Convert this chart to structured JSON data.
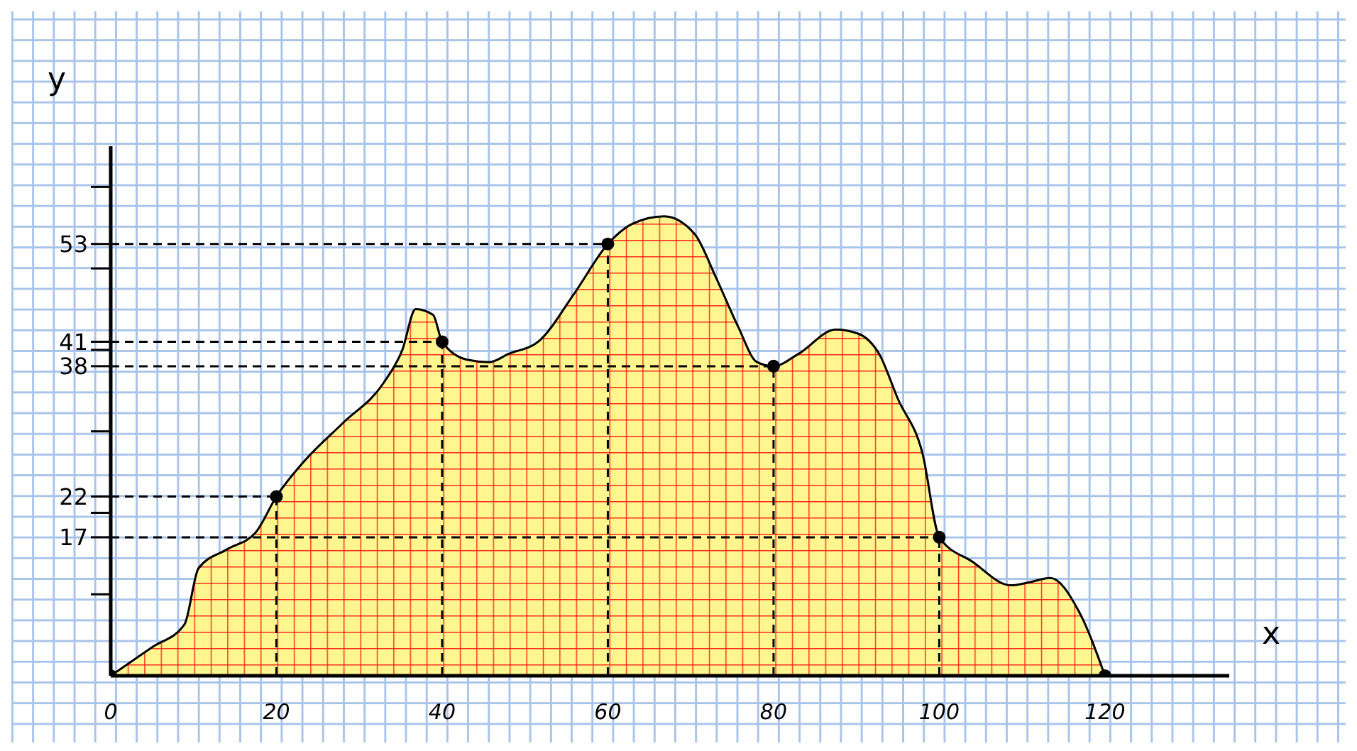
{
  "chart_data": {
    "type": "area",
    "xlabel": "x",
    "ylabel": "y",
    "xlim": [
      0,
      135
    ],
    "ylim": [
      0,
      65
    ],
    "xticks": [
      0,
      20,
      40,
      60,
      80,
      100,
      120
    ],
    "yticks": [
      {
        "value": 10,
        "label": null
      },
      {
        "value": 20,
        "label": null
      },
      {
        "value": 30,
        "label": null
      },
      {
        "value": 40,
        "label": null
      },
      {
        "value": 50,
        "label": null
      },
      {
        "value": 60,
        "label": null
      },
      17,
      22,
      38,
      41,
      53
    ],
    "grid": false,
    "legend": false,
    "series": [
      {
        "color": "#fff68f",
        "x": [
          0,
          5,
          8.9,
          10.6,
          14,
          17.5,
          20,
          23.5,
          28,
          32.9,
          35.2,
          36.8,
          38.9,
          40,
          43,
          45.7,
          48,
          51.7,
          56,
          60,
          63,
          66.8,
          70.5,
          73,
          75.7,
          78,
          80,
          83,
          87.5,
          90.2,
          92.8,
          95,
          98,
          100,
          104,
          108.6,
          111,
          113.4,
          116.8,
          120
        ],
        "values": [
          0,
          3.5,
          6.3,
          13.2,
          15.5,
          17.6,
          22,
          26.5,
          31,
          35.9,
          40,
          45,
          44.3,
          41,
          38.8,
          38.5,
          39.5,
          41.1,
          47,
          53,
          55.5,
          56.4,
          54.2,
          49,
          42.9,
          38.5,
          38,
          39.5,
          42.5,
          42,
          39.4,
          34,
          27.2,
          17,
          14,
          11.1,
          11.5,
          12,
          8,
          0
        ]
      },
      {
        "type": "scatter",
        "color": "#000000",
        "marker": "circle",
        "x": [
          0,
          20,
          40,
          60,
          80,
          100,
          120
        ],
        "values": [
          0,
          22,
          41,
          53,
          38,
          17,
          0
        ]
      }
    ],
    "ref_lines": [
      {
        "axis": "y",
        "value": 17,
        "line_style": "dashed",
        "color": "#000000"
      },
      {
        "axis": "y",
        "value": 22,
        "line_style": "dashed",
        "color": "#000000"
      },
      {
        "axis": "y",
        "value": 38,
        "line_style": "dashed",
        "color": "#000000"
      },
      {
        "axis": "y",
        "value": 41,
        "line_style": "dashed",
        "color": "#000000"
      },
      {
        "axis": "y",
        "value": 53,
        "line_style": "dashed",
        "color": "#000000"
      },
      {
        "axis": "x",
        "value": 20,
        "line_style": "dashed",
        "color": "#000000"
      },
      {
        "axis": "x",
        "value": 40,
        "line_style": "dashed",
        "color": "#000000"
      },
      {
        "axis": "x",
        "value": 60,
        "line_style": "dashed",
        "color": "#000000"
      },
      {
        "axis": "x",
        "value": 80,
        "line_style": "dashed",
        "color": "#000000"
      },
      {
        "axis": "x",
        "value": 100,
        "line_style": "dashed",
        "color": "#000000"
      }
    ]
  }
}
